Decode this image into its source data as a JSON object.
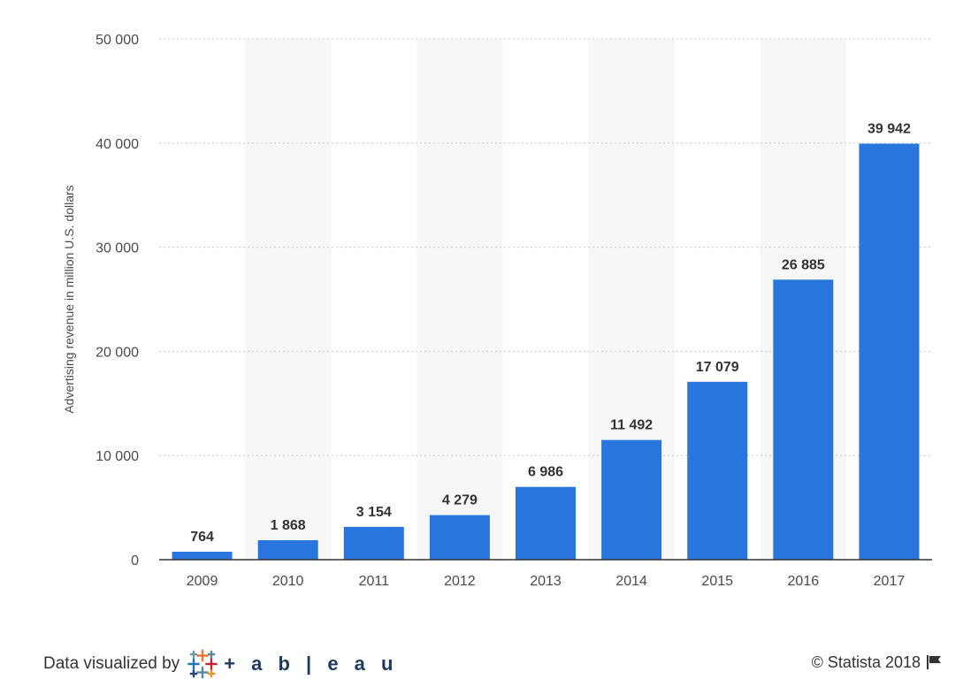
{
  "chart_data": {
    "type": "bar",
    "categories": [
      "2009",
      "2010",
      "2011",
      "2012",
      "2013",
      "2014",
      "2015",
      "2016",
      "2017"
    ],
    "values": [
      764,
      1868,
      3154,
      4279,
      6986,
      11492,
      17079,
      26885,
      39942
    ],
    "value_labels": [
      "764",
      "1 868",
      "3 154",
      "4 279",
      "6 986",
      "11 492",
      "17 079",
      "26 885",
      "39 942"
    ],
    "ylabel": "Advertising revenue in million U.S. dollars",
    "xlabel": "",
    "ylim": [
      0,
      50000
    ],
    "yticks": [
      0,
      10000,
      20000,
      30000,
      40000,
      50000
    ],
    "ytick_labels": [
      "0",
      "10 000",
      "20 000",
      "30 000",
      "40 000",
      "50 000"
    ],
    "grid": true,
    "legend": "none",
    "bar_color": "#2876dd",
    "band_color": "#f7f7f7"
  },
  "footer": {
    "credit_text": "Data visualized by",
    "tableau_word": "+ a b | e a u",
    "copyright": "© Statista 2018",
    "flag_icon": "flag-icon"
  }
}
